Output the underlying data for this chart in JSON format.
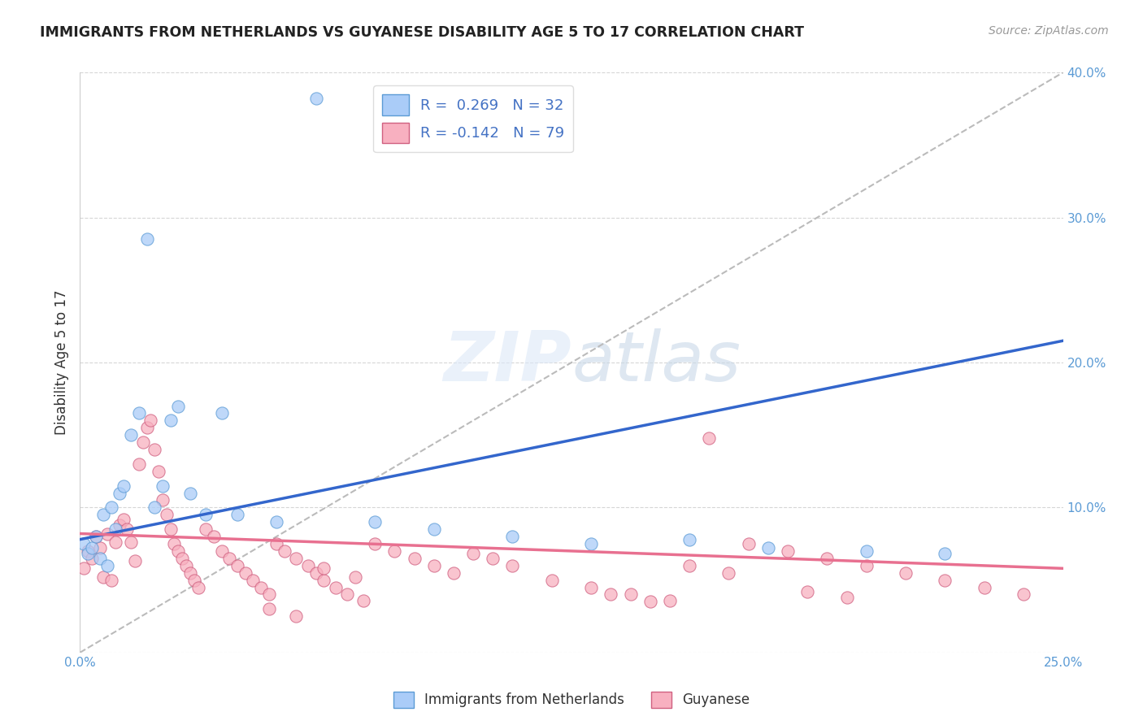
{
  "title": "IMMIGRANTS FROM NETHERLANDS VS GUYANESE DISABILITY AGE 5 TO 17 CORRELATION CHART",
  "source": "Source: ZipAtlas.com",
  "ylabel": "Disability Age 5 to 17",
  "x_min": 0.0,
  "x_max": 0.25,
  "y_min": 0.0,
  "y_max": 0.4,
  "netherlands_color": "#aaccf8",
  "netherlands_edge_color": "#5b9bd5",
  "guyanese_color": "#f8b0c0",
  "guyanese_edge_color": "#d06080",
  "netherlands_r": 0.269,
  "netherlands_n": 32,
  "guyanese_r": -0.142,
  "guyanese_n": 79,
  "netherlands_line_color": "#3366cc",
  "trendline_guyanese_color": "#e87090",
  "dashed_line_color": "#bbbbbb",
  "watermark_color": "#d0dff0",
  "netherlands_x": [
    0.001,
    0.002,
    0.003,
    0.004,
    0.005,
    0.006,
    0.007,
    0.008,
    0.009,
    0.01,
    0.011,
    0.013,
    0.015,
    0.017,
    0.019,
    0.021,
    0.023,
    0.025,
    0.028,
    0.032,
    0.036,
    0.04,
    0.05,
    0.06,
    0.075,
    0.09,
    0.11,
    0.13,
    0.155,
    0.175,
    0.2,
    0.22
  ],
  "netherlands_y": [
    0.075,
    0.068,
    0.072,
    0.08,
    0.065,
    0.095,
    0.06,
    0.1,
    0.085,
    0.11,
    0.115,
    0.15,
    0.165,
    0.285,
    0.1,
    0.115,
    0.16,
    0.17,
    0.11,
    0.095,
    0.165,
    0.095,
    0.09,
    0.382,
    0.09,
    0.085,
    0.08,
    0.075,
    0.078,
    0.072,
    0.07,
    0.068
  ],
  "guyanese_x": [
    0.001,
    0.002,
    0.003,
    0.004,
    0.005,
    0.006,
    0.007,
    0.008,
    0.009,
    0.01,
    0.011,
    0.012,
    0.013,
    0.014,
    0.015,
    0.016,
    0.017,
    0.018,
    0.019,
    0.02,
    0.021,
    0.022,
    0.023,
    0.024,
    0.025,
    0.026,
    0.027,
    0.028,
    0.029,
    0.03,
    0.032,
    0.034,
    0.036,
    0.038,
    0.04,
    0.042,
    0.044,
    0.046,
    0.048,
    0.05,
    0.052,
    0.055,
    0.058,
    0.06,
    0.062,
    0.065,
    0.068,
    0.072,
    0.075,
    0.08,
    0.085,
    0.09,
    0.095,
    0.1,
    0.105,
    0.11,
    0.12,
    0.13,
    0.14,
    0.15,
    0.16,
    0.17,
    0.18,
    0.19,
    0.2,
    0.21,
    0.22,
    0.23,
    0.24,
    0.135,
    0.145,
    0.155,
    0.165,
    0.185,
    0.195,
    0.048,
    0.055,
    0.062,
    0.07
  ],
  "guyanese_y": [
    0.058,
    0.07,
    0.065,
    0.08,
    0.072,
    0.052,
    0.082,
    0.05,
    0.076,
    0.088,
    0.092,
    0.085,
    0.076,
    0.063,
    0.13,
    0.145,
    0.155,
    0.16,
    0.14,
    0.125,
    0.105,
    0.095,
    0.085,
    0.075,
    0.07,
    0.065,
    0.06,
    0.055,
    0.05,
    0.045,
    0.085,
    0.08,
    0.07,
    0.065,
    0.06,
    0.055,
    0.05,
    0.045,
    0.04,
    0.075,
    0.07,
    0.065,
    0.06,
    0.055,
    0.05,
    0.045,
    0.04,
    0.036,
    0.075,
    0.07,
    0.065,
    0.06,
    0.055,
    0.068,
    0.065,
    0.06,
    0.05,
    0.045,
    0.04,
    0.036,
    0.148,
    0.075,
    0.07,
    0.065,
    0.06,
    0.055,
    0.05,
    0.045,
    0.04,
    0.04,
    0.035,
    0.06,
    0.055,
    0.042,
    0.038,
    0.03,
    0.025,
    0.058,
    0.052
  ]
}
